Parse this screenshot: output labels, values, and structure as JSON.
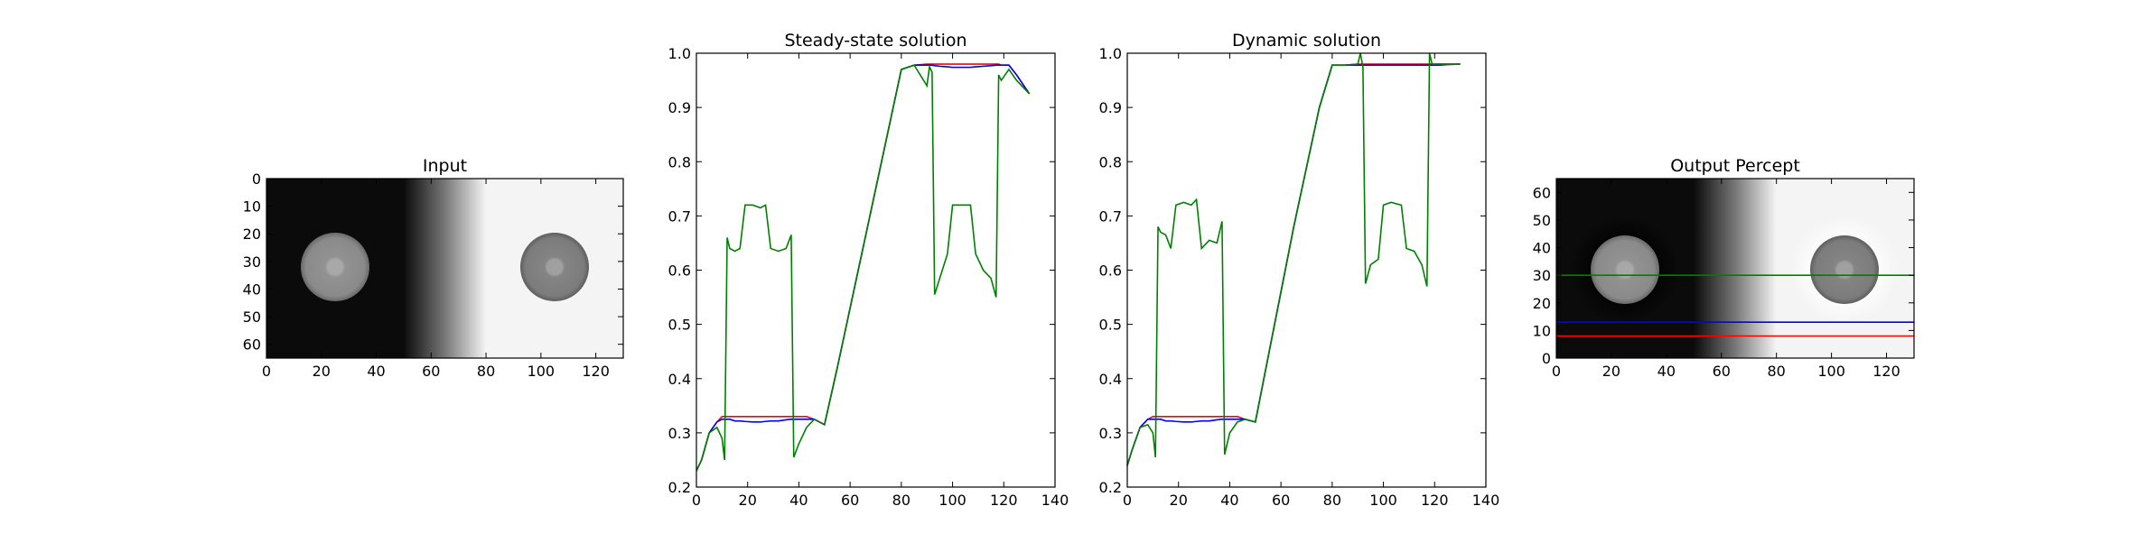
{
  "chart_data": [
    {
      "type": "image",
      "title": "Input",
      "xlim": [
        0,
        130
      ],
      "ylim": [
        65,
        0
      ],
      "xticks": [
        0,
        20,
        40,
        60,
        80,
        100,
        120
      ],
      "yticks": [
        0,
        10,
        20,
        30,
        40,
        50,
        60
      ]
    },
    {
      "type": "line",
      "title": "Steady-state solution",
      "xlim": [
        0,
        140
      ],
      "ylim": [
        0.2,
        1.0
      ],
      "xticks": [
        0,
        20,
        40,
        60,
        80,
        100,
        120,
        140
      ],
      "yticks": [
        0.2,
        0.3,
        0.4,
        0.5,
        0.6,
        0.7,
        0.8,
        0.9,
        {
          "value": 1,
          "label": "1.0"
        }
      ],
      "x": [
        0,
        2,
        5,
        8,
        10,
        11,
        12,
        13,
        15,
        17,
        19,
        22,
        25,
        27,
        29,
        32,
        35,
        37,
        38,
        40,
        43,
        46,
        50,
        55,
        60,
        65,
        70,
        75,
        80,
        85,
        90,
        91,
        92,
        93,
        95,
        98,
        100,
        103,
        107,
        109,
        112,
        115,
        117,
        118,
        119,
        122,
        125,
        130
      ],
      "series": [
        {
          "color": "#ff0000",
          "values": [
            0.23,
            0.25,
            0.3,
            0.32,
            0.33,
            0.33,
            0.33,
            0.33,
            0.33,
            0.33,
            0.33,
            0.33,
            0.33,
            0.33,
            0.33,
            0.33,
            0.33,
            0.33,
            0.33,
            0.33,
            0.33,
            0.325,
            0.315,
            0.42,
            0.53,
            0.64,
            0.75,
            0.86,
            0.97,
            0.978,
            0.98,
            0.98,
            0.98,
            0.98,
            0.98,
            0.98,
            0.98,
            0.98,
            0.98,
            0.98,
            0.98,
            0.98,
            0.98,
            0.98,
            0.978,
            0.978,
            0.96,
            0.925
          ]
        },
        {
          "color": "#0000ff",
          "values": [
            0.23,
            0.25,
            0.3,
            0.32,
            0.325,
            0.325,
            0.325,
            0.325,
            0.322,
            0.322,
            0.321,
            0.32,
            0.32,
            0.321,
            0.322,
            0.322,
            0.324,
            0.325,
            0.325,
            0.325,
            0.325,
            0.325,
            0.315,
            0.42,
            0.53,
            0.64,
            0.75,
            0.86,
            0.97,
            0.978,
            0.978,
            0.978,
            0.978,
            0.977,
            0.976,
            0.975,
            0.974,
            0.974,
            0.974,
            0.975,
            0.976,
            0.977,
            0.978,
            0.978,
            0.978,
            0.978,
            0.96,
            0.925
          ]
        },
        {
          "color": "#008000",
          "values": [
            0.23,
            0.25,
            0.3,
            0.31,
            0.29,
            0.25,
            0.66,
            0.64,
            0.635,
            0.64,
            0.72,
            0.72,
            0.715,
            0.72,
            0.64,
            0.635,
            0.64,
            0.665,
            0.255,
            0.28,
            0.31,
            0.325,
            0.315,
            0.42,
            0.53,
            0.64,
            0.75,
            0.86,
            0.97,
            0.978,
            0.94,
            0.975,
            0.965,
            0.555,
            0.585,
            0.63,
            0.72,
            0.72,
            0.72,
            0.63,
            0.6,
            0.585,
            0.55,
            0.96,
            0.95,
            0.97,
            0.95,
            0.925
          ]
        }
      ]
    },
    {
      "type": "line",
      "title": "Dynamic solution",
      "xlim": [
        0,
        140
      ],
      "ylim": [
        0.2,
        1.0
      ],
      "xticks": [
        0,
        20,
        40,
        60,
        80,
        100,
        120,
        140
      ],
      "yticks": [
        0.2,
        0.3,
        0.4,
        0.5,
        0.6,
        0.7,
        0.8,
        0.9,
        {
          "value": 1,
          "label": "1.0"
        }
      ],
      "x": [
        0,
        2,
        5,
        8,
        10,
        11,
        12,
        13,
        15,
        17,
        19,
        22,
        25,
        27,
        29,
        32,
        35,
        37,
        38,
        40,
        43,
        46,
        50,
        55,
        60,
        65,
        70,
        75,
        80,
        85,
        90,
        91,
        92,
        93,
        95,
        98,
        100,
        103,
        107,
        109,
        112,
        115,
        117,
        118,
        119,
        122,
        125,
        130
      ],
      "series": [
        {
          "color": "#ff0000",
          "values": [
            0.24,
            0.27,
            0.31,
            0.325,
            0.33,
            0.33,
            0.33,
            0.33,
            0.33,
            0.33,
            0.33,
            0.33,
            0.33,
            0.33,
            0.33,
            0.33,
            0.33,
            0.33,
            0.33,
            0.33,
            0.33,
            0.325,
            0.32,
            0.44,
            0.56,
            0.68,
            0.79,
            0.9,
            0.978,
            0.978,
            0.98,
            0.98,
            0.98,
            0.98,
            0.98,
            0.98,
            0.98,
            0.98,
            0.98,
            0.98,
            0.98,
            0.98,
            0.98,
            0.98,
            0.98,
            0.98,
            0.98,
            0.98
          ]
        },
        {
          "color": "#0000ff",
          "values": [
            0.24,
            0.27,
            0.31,
            0.325,
            0.325,
            0.325,
            0.325,
            0.325,
            0.322,
            0.322,
            0.321,
            0.32,
            0.32,
            0.321,
            0.322,
            0.322,
            0.324,
            0.325,
            0.325,
            0.325,
            0.325,
            0.325,
            0.32,
            0.44,
            0.56,
            0.68,
            0.79,
            0.9,
            0.978,
            0.978,
            0.978,
            0.978,
            0.978,
            0.978,
            0.978,
            0.978,
            0.978,
            0.978,
            0.978,
            0.978,
            0.978,
            0.978,
            0.978,
            0.978,
            0.978,
            0.978,
            0.979,
            0.98
          ]
        },
        {
          "color": "#008000",
          "values": [
            0.24,
            0.27,
            0.31,
            0.315,
            0.3,
            0.255,
            0.68,
            0.67,
            0.665,
            0.64,
            0.72,
            0.725,
            0.72,
            0.73,
            0.64,
            0.655,
            0.65,
            0.69,
            0.26,
            0.3,
            0.32,
            0.325,
            0.32,
            0.44,
            0.56,
            0.68,
            0.79,
            0.9,
            0.978,
            0.978,
            0.98,
            1.0,
            0.975,
            0.575,
            0.61,
            0.62,
            0.72,
            0.725,
            0.72,
            0.64,
            0.635,
            0.61,
            0.57,
            1.0,
            0.98,
            0.98,
            0.98,
            0.98
          ]
        }
      ]
    },
    {
      "type": "image",
      "title": "Output Percept",
      "xlim": [
        0,
        130
      ],
      "ylim": [
        0,
        65
      ],
      "xticks": [
        0,
        20,
        40,
        60,
        80,
        100,
        120
      ],
      "yticks": [
        0,
        10,
        20,
        30,
        40,
        50,
        60
      ],
      "hlines": [
        {
          "color": "#008000",
          "value": 30
        },
        {
          "color": "#0000ff",
          "value": 13
        },
        {
          "color": "#ff0000",
          "value": 8
        }
      ]
    }
  ]
}
